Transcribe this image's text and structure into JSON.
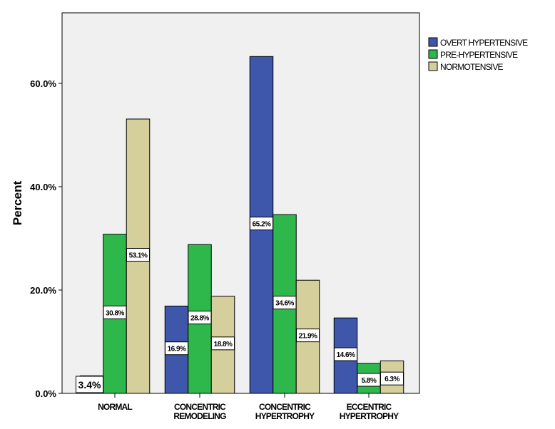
{
  "chart_data": {
    "type": "bar",
    "title": "",
    "xlabel": "",
    "ylabel": "Percent",
    "ylim": [
      0,
      73.6
    ],
    "yticks": [
      "0.0%",
      "20.0%",
      "40.0%",
      "60.0%"
    ],
    "ytick_values": [
      0,
      20,
      40,
      60
    ],
    "categories": [
      [
        "NORMAL"
      ],
      [
        "CONCENTRIC",
        "REMODELING"
      ],
      [
        "CONCENTRIC",
        "HYPERTROPHY"
      ],
      [
        "ECCENTRIC",
        "HYPERTROPHY"
      ]
    ],
    "series": [
      {
        "name": "OVERT HYPERTENSIVE",
        "color": "#3e57ab",
        "values": [
          3.4,
          16.9,
          65.2,
          14.6
        ],
        "labels": [
          "3.4%",
          "16.9%",
          "65.2%",
          "14.6%"
        ]
      },
      {
        "name": "PRE-HYPERTENSIVE",
        "color": "#2eb84b",
        "values": [
          30.8,
          28.8,
          34.6,
          5.8
        ],
        "labels": [
          "30.8%",
          "28.8%",
          "34.6%",
          "5.8%"
        ]
      },
      {
        "name": "NORMOTENSIVE",
        "color": "#d4cf9b",
        "values": [
          53.1,
          18.8,
          21.9,
          6.3
        ],
        "labels": [
          "53.1%",
          "18.8%",
          "21.9%",
          "6.3%"
        ]
      }
    ],
    "legend_position": "right",
    "plot_background": "#f0f0f0"
  }
}
